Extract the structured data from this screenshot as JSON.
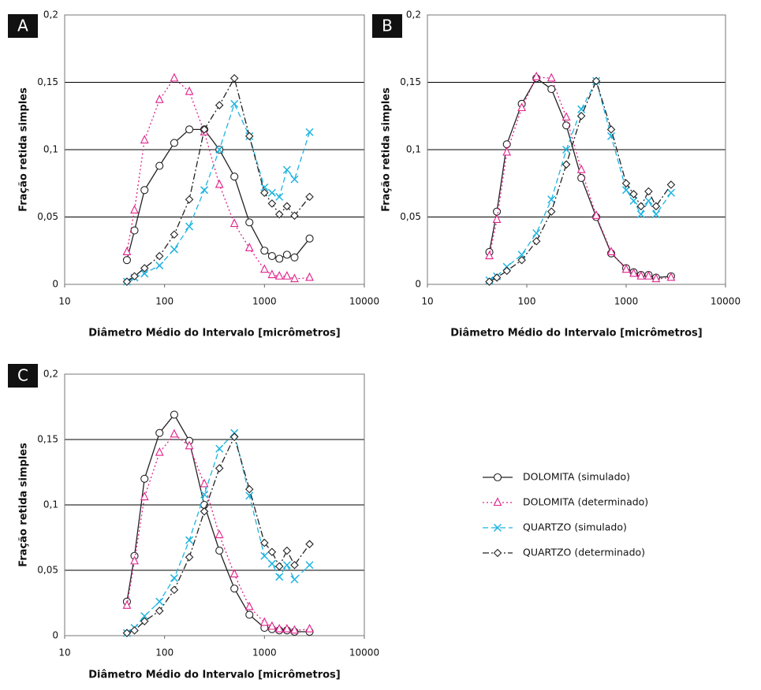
{
  "chart_data": [
    {
      "type": "line",
      "panel_label": "A",
      "xlabel": "Diâmetro Médio do Intervalo [micrômetros]",
      "ylabel": "Fração retida simples",
      "xscale": "log",
      "xlim": [
        10,
        10000
      ],
      "xticks": [
        10,
        100,
        1000,
        10000
      ],
      "ylim": [
        0,
        0.2
      ],
      "yticks": [
        0,
        {
          "value": 0.05,
          "label": "0,05"
        },
        {
          "value": 0.1,
          "label": "0,1"
        },
        {
          "value": 0.15,
          "label": "0,15"
        },
        {
          "value": 0.2,
          "label": "0,2"
        }
      ],
      "grid": true,
      "x": [
        42,
        50,
        63,
        89,
        125,
        177,
        250,
        354,
        500,
        707,
        1000,
        1190,
        1410,
        1680,
        2000,
        2830
      ],
      "series": [
        {
          "color": "#222222",
          "marker": "circle",
          "dash": "solid",
          "values": [
            0.018,
            0.04,
            0.07,
            0.088,
            0.105,
            0.115,
            0.115,
            0.1,
            0.08,
            0.046,
            0.025,
            0.021,
            0.019,
            0.022,
            0.02,
            0.034
          ]
        },
        {
          "color": "#e0218a",
          "marker": "triangle",
          "dash": "dotted",
          "values": [
            0.024,
            0.055,
            0.107,
            0.137,
            0.153,
            0.143,
            0.113,
            0.074,
            0.045,
            0.027,
            0.011,
            0.007,
            0.006,
            0.006,
            0.004,
            0.005
          ]
        },
        {
          "color": "#1fb4e0",
          "marker": "x",
          "dash": "dashed",
          "values": [
            0.002,
            0.005,
            0.008,
            0.014,
            0.026,
            0.043,
            0.07,
            0.1,
            0.134,
            0.11,
            0.072,
            0.068,
            0.065,
            0.085,
            0.078,
            0.113
          ]
        },
        {
          "color": "#222222",
          "marker": "diamond",
          "dash": "dashdot",
          "values": [
            0.002,
            0.006,
            0.012,
            0.021,
            0.037,
            0.063,
            0.115,
            0.133,
            0.153,
            0.11,
            0.068,
            0.06,
            0.052,
            0.058,
            0.051,
            0.065
          ]
        }
      ]
    },
    {
      "type": "line",
      "panel_label": "B",
      "xlabel": "Diâmetro Médio do Intervalo [micrômetros]",
      "ylabel": "Fração retida simples",
      "xscale": "log",
      "xlim": [
        10,
        10000
      ],
      "xticks": [
        10,
        100,
        1000,
        10000
      ],
      "ylim": [
        0,
        0.2
      ],
      "yticks": [
        0,
        {
          "value": 0.05,
          "label": "0,05"
        },
        {
          "value": 0.1,
          "label": "0,1"
        },
        {
          "value": 0.15,
          "label": "0,15"
        },
        {
          "value": 0.2,
          "label": "0,2"
        }
      ],
      "grid": true,
      "x": [
        42,
        50,
        63,
        89,
        125,
        177,
        250,
        354,
        500,
        707,
        1000,
        1190,
        1410,
        1680,
        2000,
        2830
      ],
      "series": [
        {
          "color": "#222222",
          "marker": "circle",
          "dash": "solid",
          "values": [
            0.024,
            0.054,
            0.104,
            0.134,
            0.153,
            0.145,
            0.118,
            0.079,
            0.05,
            0.023,
            0.012,
            0.009,
            0.007,
            0.007,
            0.005,
            0.006
          ]
        },
        {
          "color": "#e0218a",
          "marker": "triangle",
          "dash": "dotted",
          "values": [
            0.021,
            0.048,
            0.098,
            0.131,
            0.154,
            0.153,
            0.124,
            0.085,
            0.051,
            0.024,
            0.011,
            0.008,
            0.006,
            0.006,
            0.004,
            0.005
          ]
        },
        {
          "color": "#1fb4e0",
          "marker": "x",
          "dash": "dashed",
          "values": [
            0.003,
            0.006,
            0.013,
            0.022,
            0.038,
            0.063,
            0.1,
            0.13,
            0.151,
            0.11,
            0.07,
            0.062,
            0.052,
            0.062,
            0.052,
            0.068
          ]
        },
        {
          "color": "#222222",
          "marker": "diamond",
          "dash": "dashdot",
          "values": [
            0.002,
            0.005,
            0.01,
            0.018,
            0.032,
            0.054,
            0.089,
            0.125,
            0.151,
            0.115,
            0.075,
            0.067,
            0.058,
            0.069,
            0.058,
            0.074
          ]
        }
      ]
    },
    {
      "type": "line",
      "panel_label": "C",
      "xlabel": "Diâmetro Médio do Intervalo [micrômetros]",
      "ylabel": "Fração retida simples",
      "xscale": "log",
      "xlim": [
        10,
        10000
      ],
      "xticks": [
        10,
        100,
        1000,
        10000
      ],
      "ylim": [
        0,
        0.2
      ],
      "yticks": [
        0,
        {
          "value": 0.05,
          "label": "0,05"
        },
        {
          "value": 0.1,
          "label": "0,1"
        },
        {
          "value": 0.15,
          "label": "0,15"
        },
        {
          "value": 0.2,
          "label": "0,2"
        }
      ],
      "grid": true,
      "legend": "right",
      "x": [
        42,
        50,
        63,
        89,
        125,
        177,
        250,
        354,
        500,
        707,
        1000,
        1190,
        1410,
        1680,
        2000,
        2830
      ],
      "series": [
        {
          "name": "DOLOMITA (simulado)",
          "color": "#222222",
          "marker": "circle",
          "dash": "solid",
          "values": [
            0.026,
            0.061,
            0.12,
            0.155,
            0.169,
            0.149,
            0.1,
            0.065,
            0.036,
            0.016,
            0.006,
            0.005,
            0.004,
            0.004,
            0.003,
            0.003
          ]
        },
        {
          "name": "DOLOMITA (determinado)",
          "color": "#e0218a",
          "marker": "triangle",
          "dash": "dotted",
          "values": [
            0.023,
            0.057,
            0.106,
            0.14,
            0.154,
            0.145,
            0.116,
            0.077,
            0.047,
            0.022,
            0.01,
            0.007,
            0.005,
            0.005,
            0.004,
            0.005
          ]
        },
        {
          "name": "QUARTZO (simulado)",
          "color": "#1fb4e0",
          "marker": "x",
          "dash": "dashed",
          "values": [
            0.002,
            0.006,
            0.015,
            0.026,
            0.044,
            0.073,
            0.108,
            0.143,
            0.155,
            0.107,
            0.061,
            0.055,
            0.045,
            0.054,
            0.043,
            0.054
          ]
        },
        {
          "name": "QUARTZO (determinado)",
          "color": "#222222",
          "marker": "diamond",
          "dash": "dashdot",
          "values": [
            0.002,
            0.004,
            0.011,
            0.019,
            0.035,
            0.06,
            0.095,
            0.128,
            0.152,
            0.112,
            0.071,
            0.064,
            0.053,
            0.065,
            0.054,
            0.07
          ]
        }
      ]
    }
  ]
}
